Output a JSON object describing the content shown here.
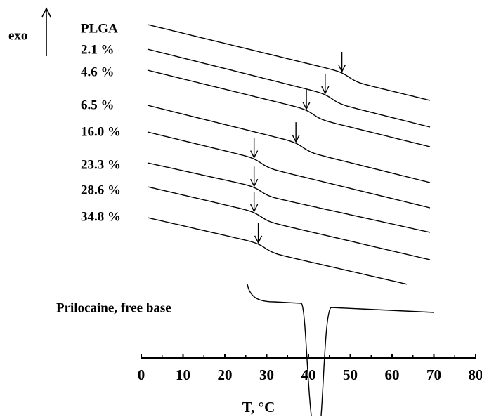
{
  "chart_data": {
    "type": "dsc",
    "ylabel": "exo",
    "xlabel": "T, °C",
    "xlim": [
      0,
      80
    ],
    "xticks": [
      0,
      10,
      20,
      30,
      40,
      50,
      60,
      70,
      80
    ],
    "series": [
      {
        "name": "PLGA",
        "tg": 48
      },
      {
        "name": "2.1 %",
        "tg": 44
      },
      {
        "name": "4.6 %",
        "tg": 39.5
      },
      {
        "name": "6.5 %",
        "tg": 37
      },
      {
        "name": "16.0  %",
        "tg": 27
      },
      {
        "name": "23.3  %",
        "tg": 27
      },
      {
        "name": "28.6  %",
        "tg": 27
      },
      {
        "name": "34.8  %",
        "tg": 28
      }
    ],
    "melt": {
      "name": "Prilocaine, free base",
      "peak": 42
    },
    "color": "#000000"
  }
}
